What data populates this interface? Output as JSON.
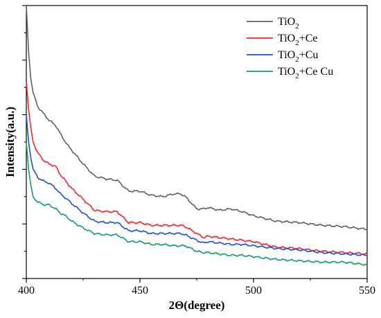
{
  "chart_data": {
    "type": "line",
    "xlabel": "2Θ(degree)",
    "ylabel": "Intensity(a.u.)",
    "xlim": [
      400,
      550
    ],
    "ylim": [
      0,
      100
    ],
    "xticks": [
      "400",
      "450",
      "500",
      "550"
    ],
    "yticks_labeled": false,
    "grid": false,
    "legend_position": "top-right",
    "series": [
      {
        "name": "TiO",
        "subscript": "2",
        "suffix": "",
        "color": "#606060",
        "x": [
          400,
          401,
          402,
          403,
          405,
          408,
          410,
          413,
          415,
          418,
          420,
          425,
          430,
          435,
          440,
          445,
          450,
          455,
          460,
          465,
          468,
          470,
          475,
          478,
          480,
          485,
          490,
          495,
          500,
          510,
          520,
          530,
          540,
          550
        ],
        "y": [
          100,
          83,
          73,
          68,
          63,
          60,
          58,
          56,
          53,
          49,
          47,
          42,
          37.5,
          36.5,
          36,
          32,
          32,
          30.5,
          30,
          31,
          31,
          30,
          25.5,
          25.5,
          26,
          25,
          25.5,
          24.5,
          23,
          21,
          20.5,
          19.5,
          19,
          18
        ]
      },
      {
        "name": "TiO",
        "subscript": "2",
        "suffix": "+Ce",
        "color": "#ff2020",
        "x": [
          400,
          401,
          402,
          403,
          405,
          408,
          410,
          413,
          415,
          418,
          420,
          425,
          430,
          435,
          440,
          445,
          450,
          455,
          460,
          465,
          468,
          470,
          475,
          478,
          480,
          485,
          490,
          495,
          500,
          510,
          520,
          530,
          540,
          550
        ],
        "y": [
          72,
          62,
          55,
          50,
          46,
          43,
          42,
          41,
          38,
          35,
          33,
          29,
          25,
          24.5,
          24.5,
          20.5,
          20.5,
          19.5,
          19.5,
          19.5,
          19.5,
          19,
          16.5,
          15,
          15.5,
          15,
          14.5,
          14,
          13.5,
          11.5,
          11,
          10,
          9.5,
          9
        ]
      },
      {
        "name": "TiO",
        "subscript": "2",
        "suffix": "+Cu",
        "color": "#1a4fe0",
        "x": [
          400,
          401,
          402,
          403,
          405,
          408,
          410,
          413,
          415,
          418,
          420,
          425,
          430,
          435,
          440,
          445,
          450,
          455,
          460,
          465,
          468,
          470,
          475,
          478,
          480,
          485,
          490,
          495,
          500,
          510,
          520,
          530,
          540,
          550
        ],
        "y": [
          60,
          50,
          44,
          40,
          37,
          35.5,
          35,
          33,
          31,
          29,
          27.5,
          24,
          21,
          20.5,
          20.5,
          17.5,
          17.5,
          16.5,
          16.5,
          16.5,
          16.5,
          16,
          14,
          13,
          13.5,
          13,
          12.5,
          12.5,
          12,
          11,
          10.5,
          9.5,
          9,
          8.5
        ]
      },
      {
        "name": "TiO",
        "subscript": "2",
        "suffix": "+Ce Cu",
        "color": "#10a060",
        "x": [
          400,
          401,
          402,
          403,
          405,
          408,
          410,
          413,
          415,
          418,
          420,
          425,
          430,
          435,
          440,
          445,
          450,
          455,
          460,
          465,
          468,
          470,
          475,
          478,
          480,
          485,
          490,
          495,
          500,
          510,
          520,
          530,
          540,
          550
        ],
        "y": [
          50,
          40,
          34,
          30,
          28,
          27,
          27,
          25.5,
          24,
          22.5,
          21,
          18.5,
          16.5,
          16,
          16,
          13.5,
          13.5,
          12.5,
          12.5,
          12,
          12,
          12,
          10,
          9.5,
          9.5,
          9,
          8.5,
          8.5,
          8,
          7,
          6.5,
          6,
          6,
          5
        ]
      }
    ]
  }
}
